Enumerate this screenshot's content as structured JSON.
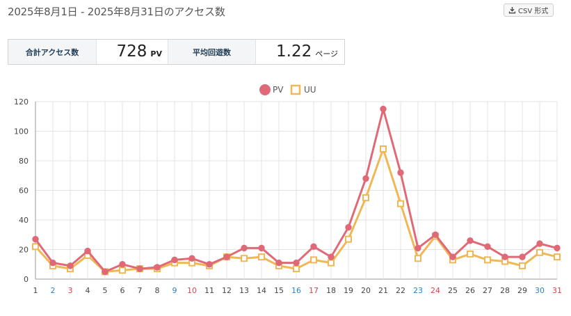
{
  "header": {
    "title": "2025年8月1日 - 2025年8月31日のアクセス数",
    "csv_button_label": "CSV 形式",
    "csv_icon": "download-icon"
  },
  "stats": {
    "total_label": "合計アクセス数",
    "total_value": "728",
    "total_unit": "PV",
    "avg_label": "平均回遊数",
    "avg_value": "1.22",
    "avg_unit": "ページ"
  },
  "chart_data": {
    "type": "line",
    "x": [
      "1",
      "2",
      "3",
      "4",
      "5",
      "6",
      "7",
      "8",
      "9",
      "10",
      "11",
      "12",
      "13",
      "14",
      "15",
      "16",
      "17",
      "18",
      "19",
      "20",
      "21",
      "22",
      "23",
      "24",
      "25",
      "26",
      "27",
      "28",
      "29",
      "30",
      "31"
    ],
    "x_label_colors": {
      "weekday": "#444444",
      "saturday": "#2d7fc4",
      "sunday": "#d9434f",
      "saturday_days": [
        "2",
        "9",
        "16",
        "23",
        "30"
      ],
      "sunday_days": [
        "3",
        "10",
        "17",
        "24",
        "31"
      ]
    },
    "ylim": [
      0,
      120
    ],
    "yticks": [
      "0",
      "20",
      "40",
      "60",
      "80",
      "100",
      "120"
    ],
    "grid": true,
    "legend_position": "top-center",
    "series": [
      {
        "name": "PV",
        "color": "#e06977",
        "marker": "circle",
        "values": [
          27,
          11,
          9,
          19,
          5,
          10,
          7,
          8,
          13,
          14,
          10,
          15,
          21,
          21,
          11,
          11,
          22,
          15,
          35,
          68,
          115,
          72,
          21,
          30,
          15,
          26,
          22,
          15,
          15,
          24,
          21
        ]
      },
      {
        "name": "UU",
        "color": "#f0b755",
        "marker": "square",
        "values": [
          22,
          9,
          7,
          16,
          5,
          6,
          7,
          7,
          11,
          11,
          9,
          15,
          14,
          15,
          9,
          7,
          13,
          11,
          27,
          55,
          88,
          51,
          14,
          29,
          13,
          17,
          13,
          12,
          9,
          18,
          15
        ]
      }
    ]
  }
}
